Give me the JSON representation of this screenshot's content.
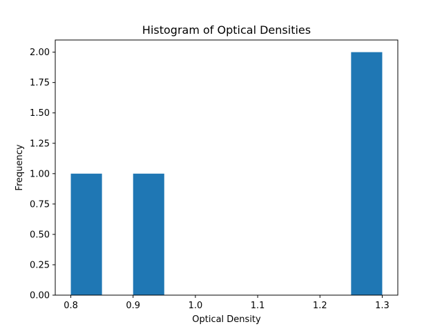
{
  "chart_data": {
    "type": "bar",
    "title": "Histogram of Optical Densities",
    "xlabel": "Optical Density",
    "ylabel": "Frequency",
    "bins": [
      {
        "x0": 0.8,
        "x1": 0.85,
        "value": 1
      },
      {
        "x0": 0.85,
        "x1": 0.9,
        "value": 0
      },
      {
        "x0": 0.9,
        "x1": 0.95,
        "value": 1
      },
      {
        "x0": 0.95,
        "x1": 1.0,
        "value": 0
      },
      {
        "x0": 1.0,
        "x1": 1.05,
        "value": 0
      },
      {
        "x0": 1.05,
        "x1": 1.1,
        "value": 0
      },
      {
        "x0": 1.1,
        "x1": 1.15,
        "value": 0
      },
      {
        "x0": 1.15,
        "x1": 1.2,
        "value": 0
      },
      {
        "x0": 1.2,
        "x1": 1.25,
        "value": 0
      },
      {
        "x0": 1.25,
        "x1": 1.3,
        "value": 2
      }
    ],
    "xlim": [
      0.775,
      1.325
    ],
    "ylim": [
      0,
      2.1
    ],
    "xticks": [
      0.8,
      0.9,
      1.0,
      1.1,
      1.2,
      1.3
    ],
    "xtick_labels": [
      "0.8",
      "0.9",
      "1.0",
      "1.1",
      "1.2",
      "1.3"
    ],
    "yticks": [
      0,
      0.25,
      0.5,
      0.75,
      1.0,
      1.25,
      1.5,
      1.75,
      2.0
    ],
    "ytick_labels": [
      "0.00",
      "0.25",
      "0.50",
      "0.75",
      "1.00",
      "1.25",
      "1.50",
      "1.75",
      "2.00"
    ],
    "grid": false,
    "bar_color": "#1f77b4"
  }
}
